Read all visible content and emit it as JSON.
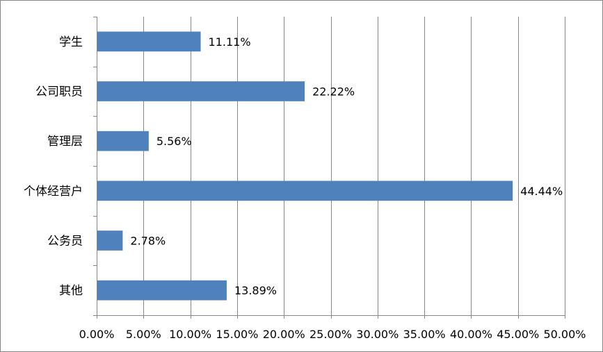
{
  "chart_data": {
    "type": "bar",
    "orientation": "horizontal",
    "categories": [
      "学生",
      "公司职员",
      "管理层",
      "个体经营户",
      "公务员",
      "其他"
    ],
    "values": [
      11.11,
      22.22,
      5.56,
      44.44,
      2.78,
      13.89
    ],
    "data_labels": [
      "11.11%",
      "22.22%",
      "5.56%",
      "44.44%",
      "2.78%",
      "13.89%"
    ],
    "xlim": [
      0,
      50
    ],
    "x_ticks": [
      0,
      5,
      10,
      15,
      20,
      25,
      30,
      35,
      40,
      45,
      50
    ],
    "x_tick_labels": [
      "0.00%",
      "5.00%",
      "10.00%",
      "15.00%",
      "20.00%",
      "25.00%",
      "30.00%",
      "35.00%",
      "40.00%",
      "45.00%",
      "50.00%"
    ],
    "grid": "vertical",
    "legend": "none",
    "title": "",
    "xlabel": "",
    "ylabel": "",
    "colors": {
      "bar": "#4f81bd",
      "grid": "#868686",
      "text": "#000000"
    }
  }
}
